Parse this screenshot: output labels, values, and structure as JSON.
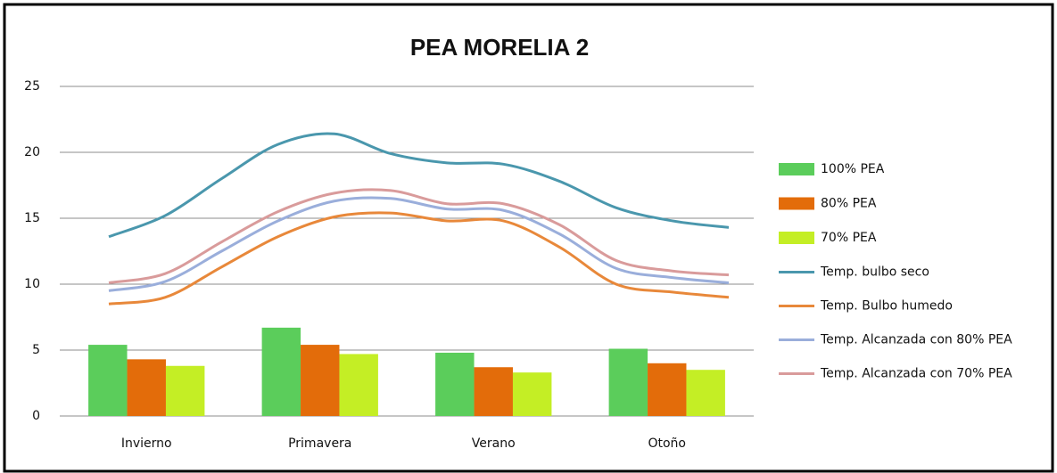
{
  "chart_data": {
    "type": "bar",
    "title": "PEA MORELIA 2",
    "categories": [
      "Invierno",
      "Primavera",
      "Verano",
      "Otoño"
    ],
    "ylim": [
      0,
      25
    ],
    "yticks": [
      0,
      5,
      10,
      15,
      20,
      25
    ],
    "grid": true,
    "legend": "right",
    "series": [
      {
        "name": "100% PEA",
        "color": "#5bcd5b",
        "values": [
          5.4,
          6.7,
          4.8,
          5.1
        ]
      },
      {
        "name": "80% PEA",
        "color": "#e36c0a",
        "values": [
          4.3,
          5.4,
          3.7,
          4.0
        ]
      },
      {
        "name": "70% PEA",
        "color": "#c4ee25",
        "values": [
          3.8,
          4.7,
          3.3,
          3.5
        ]
      }
    ],
    "line_series": [
      {
        "name": "Temp. bulbo seco",
        "color": "#4a97ad",
        "values": [
          13.6,
          15.2,
          18.0,
          20.6,
          21.4,
          19.9,
          19.2,
          19.1,
          17.8,
          15.8,
          14.8,
          14.3
        ]
      },
      {
        "name": "Temp. Bulbo humedo",
        "color": "#e8883a",
        "values": [
          8.5,
          9.0,
          11.3,
          13.6,
          15.1,
          15.4,
          14.8,
          14.8,
          12.8,
          10.0,
          9.4,
          9.0
        ]
      },
      {
        "name": "Temp. Alcanzada con 80% PEA",
        "color": "#9aaedb",
        "values": [
          9.5,
          10.2,
          12.5,
          14.8,
          16.3,
          16.5,
          15.7,
          15.6,
          13.8,
          11.2,
          10.5,
          10.1
        ]
      },
      {
        "name": "Temp. Alcanzada con 70% PEA",
        "color": "#d99b9b",
        "values": [
          10.1,
          10.8,
          13.2,
          15.5,
          16.9,
          17.1,
          16.1,
          16.1,
          14.5,
          11.8,
          11.0,
          10.7
        ]
      }
    ]
  }
}
